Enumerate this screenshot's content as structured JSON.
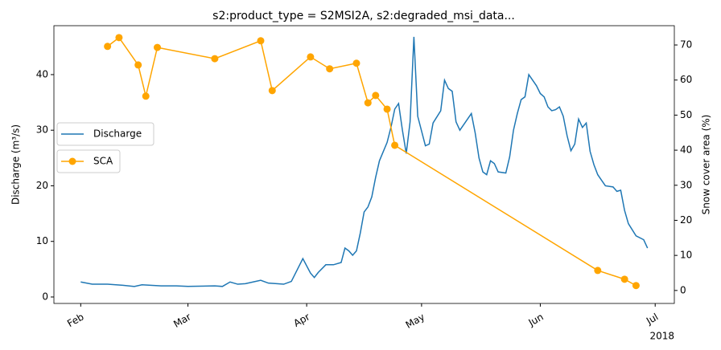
{
  "chart_data": {
    "type": "line",
    "title": "s2:product_type = S2MSI2A, s2:degraded_msi_data...",
    "ylabel": "Discharge (m³/s)",
    "y2label": "Snow cover area (%)",
    "x_offset_label": "2018",
    "xlim": [
      "2018-01-25",
      "2018-07-06"
    ],
    "xticks": [
      {
        "value": "2018-02-01",
        "label": "Feb"
      },
      {
        "value": "2018-03-01",
        "label": "Mar"
      },
      {
        "value": "2018-04-01",
        "label": "Apr"
      },
      {
        "value": "2018-05-01",
        "label": "May"
      },
      {
        "value": "2018-06-01",
        "label": "Jun"
      },
      {
        "value": "2018-07-01",
        "label": "Jul"
      }
    ],
    "ylim": [
      -1.16,
      48.8
    ],
    "yticks": [
      0,
      10,
      20,
      30,
      40
    ],
    "y2lim": [
      -3.7,
      75.5
    ],
    "y2ticks": [
      0,
      10,
      20,
      30,
      40,
      50,
      60,
      70
    ],
    "series": [
      {
        "name": "Discharge",
        "color": "#1f77b4",
        "x": [
          "2018-02-01",
          "2018-02-04",
          "2018-02-08",
          "2018-02-12",
          "2018-02-15",
          "2018-02-17",
          "2018-02-22",
          "2018-02-26",
          "2018-03-01",
          "2018-03-08",
          "2018-03-10",
          "2018-03-12",
          "2018-03-14",
          "2018-03-16",
          "2018-03-18",
          "2018-03-20",
          "2018-03-22",
          "2018-03-26",
          "2018-03-28",
          "2018-03-31",
          "2018-04-02",
          "2018-04-03",
          "2018-04-04",
          "2018-04-06",
          "2018-04-08",
          "2018-04-10",
          "2018-04-11",
          "2018-04-12",
          "2018-04-13",
          "2018-04-14",
          "2018-04-15",
          "2018-04-16",
          "2018-04-17",
          "2018-04-18",
          "2018-04-19",
          "2018-04-20",
          "2018-04-22",
          "2018-04-23",
          "2018-04-24",
          "2018-04-25",
          "2018-04-26",
          "2018-04-27",
          "2018-04-28",
          "2018-04-29",
          "2018-04-30",
          "2018-05-02",
          "2018-05-03",
          "2018-05-04",
          "2018-05-06",
          "2018-05-07",
          "2018-05-08",
          "2018-05-09",
          "2018-05-10",
          "2018-05-11",
          "2018-05-12",
          "2018-05-14",
          "2018-05-15",
          "2018-05-16",
          "2018-05-17",
          "2018-05-18",
          "2018-05-19",
          "2018-05-20",
          "2018-05-21",
          "2018-05-23",
          "2018-05-24",
          "2018-05-25",
          "2018-05-26",
          "2018-05-27",
          "2018-05-28",
          "2018-05-29",
          "2018-05-31",
          "2018-06-01",
          "2018-06-02",
          "2018-06-03",
          "2018-06-04",
          "2018-06-05",
          "2018-06-06",
          "2018-06-07",
          "2018-06-08",
          "2018-06-09",
          "2018-06-10",
          "2018-06-11",
          "2018-06-12",
          "2018-06-13",
          "2018-06-14",
          "2018-06-15",
          "2018-06-16",
          "2018-06-17",
          "2018-06-18",
          "2018-06-20",
          "2018-06-21",
          "2018-06-22",
          "2018-06-23",
          "2018-06-24",
          "2018-06-26",
          "2018-06-28",
          "2018-06-29"
        ],
        "values": [
          2.7,
          2.3,
          2.3,
          2.1,
          1.9,
          2.2,
          2.0,
          2.0,
          1.9,
          2.0,
          1.9,
          2.7,
          2.3,
          2.4,
          2.7,
          3.0,
          2.5,
          2.3,
          2.8,
          6.9,
          4.3,
          3.5,
          4.4,
          5.8,
          5.8,
          6.2,
          8.8,
          8.3,
          7.5,
          8.3,
          11.5,
          15.3,
          16.2,
          18.0,
          21.5,
          24.5,
          27.8,
          30.5,
          33.8,
          34.8,
          30.0,
          25.8,
          31.5,
          46.8,
          32.5,
          27.2,
          27.5,
          31.3,
          33.5,
          39.0,
          37.5,
          37.0,
          31.5,
          30.0,
          31.0,
          33.0,
          29.5,
          25.0,
          22.5,
          22.0,
          24.5,
          24.0,
          22.5,
          22.3,
          25.2,
          30.0,
          33.0,
          35.5,
          36.0,
          40.0,
          38.0,
          36.6,
          36.0,
          34.2,
          33.5,
          33.7,
          34.2,
          32.5,
          29.0,
          26.3,
          27.5,
          32.0,
          30.5,
          31.3,
          26.2,
          23.8,
          22.0,
          21.0,
          20.0,
          19.8,
          19.0,
          19.2,
          15.6,
          13.2,
          11.0,
          10.3,
          8.8
        ]
      },
      {
        "name": "SCA",
        "color": "#ffa500",
        "axis": "y2",
        "marker": "circle",
        "x": [
          "2018-02-08",
          "2018-02-11",
          "2018-02-16",
          "2018-02-18",
          "2018-02-21",
          "2018-03-08",
          "2018-03-20",
          "2018-03-23",
          "2018-04-02",
          "2018-04-07",
          "2018-04-14",
          "2018-04-17",
          "2018-04-19",
          "2018-04-22",
          "2018-04-24",
          "2018-06-16",
          "2018-06-23",
          "2018-06-26"
        ],
        "values": [
          69.6,
          72.1,
          64.3,
          55.4,
          69.3,
          66.1,
          71.2,
          57.0,
          66.6,
          63.2,
          64.8,
          53.5,
          55.6,
          51.7,
          41.4,
          5.7,
          3.2,
          1.4
        ]
      }
    ]
  }
}
